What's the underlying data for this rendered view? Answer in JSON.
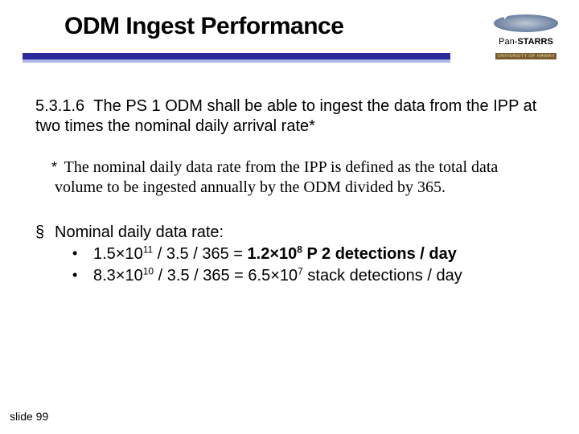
{
  "title": "ODM Ingest Performance",
  "logo": {
    "brand_pre": "Pan-",
    "brand_main": "STARRS",
    "subtitle": "UNIVERSITY OF HAWAII",
    "star": "✦"
  },
  "colors": {
    "rule_dark": "#2a2a9a",
    "rule_light": "#b0b8e8",
    "background": "#ffffff"
  },
  "requirement": {
    "section": "5.3.1.6",
    "text": "The PS 1 ODM shall be able to ingest the data from the IPP at two times the nominal daily arrival rate*"
  },
  "footnote": {
    "marker": "*",
    "text": "The nominal daily data rate from the IPP is defined as the total data volume to be ingested annually by the ODM divided by 365."
  },
  "bullet": {
    "marker": "§",
    "heading": "Nominal daily data rate:",
    "sub_marker": "•",
    "line1_pre": "1.5×10",
    "line1_exp1": "11",
    "line1_mid": " / 3.5 / 365 = ",
    "line1_bold_pre": "1.2×10",
    "line1_bold_exp": "8",
    "line1_bold_post": " P 2 detections / day",
    "line2_pre": "8.3×10",
    "line2_exp1": "10",
    "line2_mid": " / 3.5 / 365 = 6.5×10",
    "line2_exp2": "7",
    "line2_post": " stack detections / day"
  },
  "footer": {
    "label": "slide 99"
  }
}
